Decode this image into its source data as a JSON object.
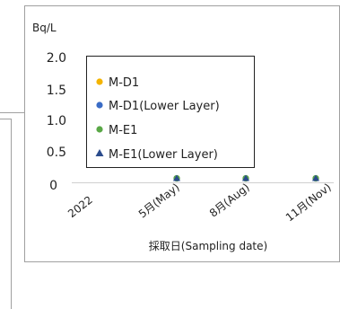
{
  "chart_data": {
    "type": "scatter",
    "y_unit": "Bq/L",
    "xlabel": "採取日(Sampling date)",
    "ylim": [
      0,
      2.0
    ],
    "y_ticks": [
      "0",
      "0.5",
      "1.0",
      "1.5",
      "2.0"
    ],
    "y_tick_values": [
      0,
      0.5,
      1.0,
      1.5,
      2.0
    ],
    "categories": [
      "2022",
      "5月(May)",
      "8月(Aug)",
      "11月(Nov)"
    ],
    "grid": false,
    "legend_position": "inside-top-left",
    "series": [
      {
        "name": "M-D1",
        "marker": "circle",
        "color": "#f4b400",
        "values": [
          null,
          0.05,
          0.05,
          0.05
        ]
      },
      {
        "name": "M-D1(Lower Layer)",
        "marker": "circle",
        "color": "#3a6cc6",
        "values": [
          null,
          0.05,
          0.05,
          0.05
        ]
      },
      {
        "name": "M-E1",
        "marker": "circle",
        "color": "#5aa847",
        "values": [
          null,
          0.05,
          0.05,
          0.05
        ]
      },
      {
        "name": "M-E1(Lower Layer)",
        "marker": "triangle",
        "color": "#2b4c8c",
        "values": [
          null,
          0.05,
          0.05,
          0.05
        ]
      }
    ]
  },
  "colors": {
    "frame": "#a0a0a0",
    "legend_border": "#222222"
  }
}
